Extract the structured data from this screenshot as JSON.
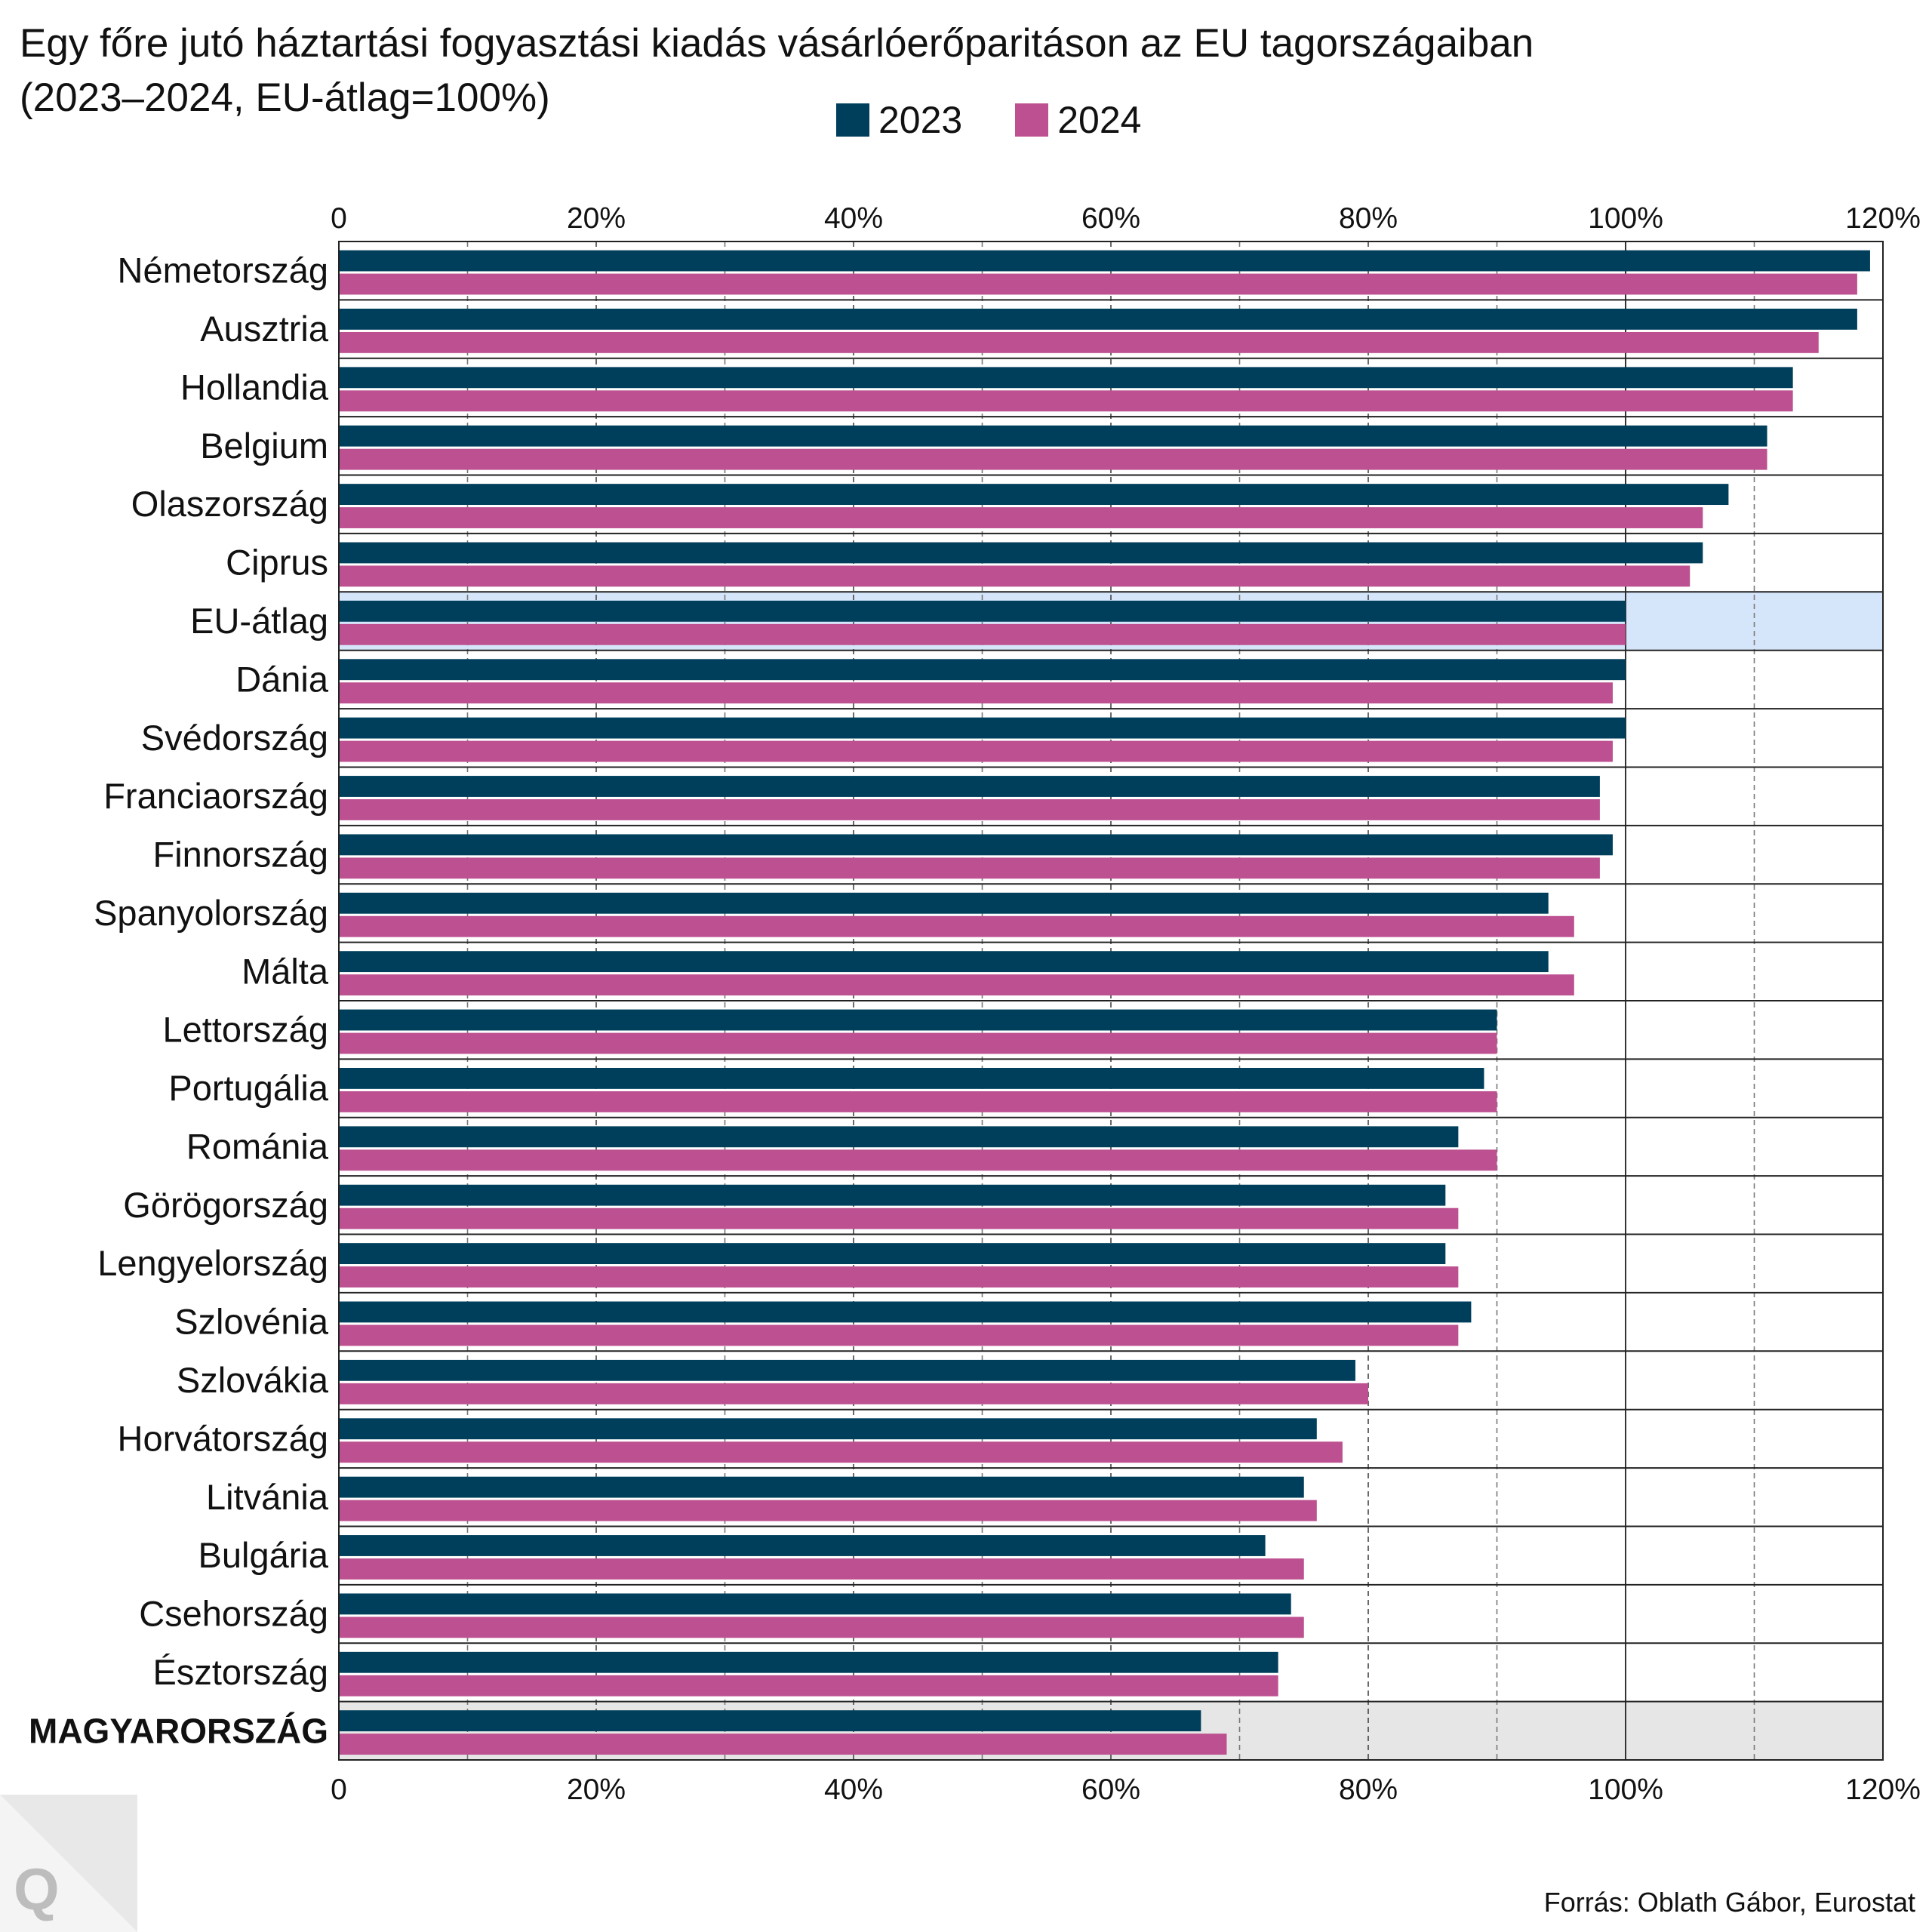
{
  "chart_data": {
    "type": "bar",
    "orientation": "horizontal",
    "title": "Egy főre jutó háztartási fogyasztási kiadás vásárlóerőparitáson az EU tagországaiban",
    "subtitle": "(2023–2024, EU-átlag=100%)",
    "categories": [
      "Németország",
      "Ausztria",
      "Hollandia",
      "Belgium",
      "Olaszország",
      "Ciprus",
      "EU-átlag",
      "Dánia",
      "Svédország",
      "Franciaország",
      "Finnország",
      "Spanyolország",
      "Málta",
      "Lettország",
      "Portugália",
      "Románia",
      "Görögország",
      "Lengyelország",
      "Szlovénia",
      "Szlovákia",
      "Horvátország",
      "Litvánia",
      "Bulgária",
      "Csehország",
      "Észtország",
      "MAGYARORSZÁG"
    ],
    "series": [
      {
        "name": "2023",
        "color": "#003f5c",
        "values": [
          119,
          118,
          113,
          111,
          108,
          106,
          100,
          100,
          100,
          98,
          99,
          94,
          94,
          90,
          89,
          87,
          86,
          86,
          88,
          79,
          76,
          75,
          72,
          74,
          73,
          67
        ]
      },
      {
        "name": "2024",
        "color": "#bc5090",
        "values": [
          118,
          115,
          113,
          111,
          106,
          105,
          100,
          99,
          99,
          98,
          98,
          96,
          96,
          90,
          90,
          90,
          87,
          87,
          87,
          80,
          78,
          76,
          75,
          75,
          73,
          69
        ]
      }
    ],
    "xlim": [
      0,
      120
    ],
    "xticks": [
      0,
      20,
      40,
      60,
      80,
      100,
      120
    ],
    "xtick_labels": [
      "0",
      "20%",
      "40%",
      "60%",
      "80%",
      "100%",
      "120%"
    ],
    "highlight_rows": {
      "EU-átlag": "#d6e6fa",
      "MAGYARORSZÁG": "#e6e6e6"
    },
    "legend_position": "top",
    "grid": true
  },
  "source": "Forrás: Oblath Gábor, Eurostat",
  "logo_text": "Q"
}
